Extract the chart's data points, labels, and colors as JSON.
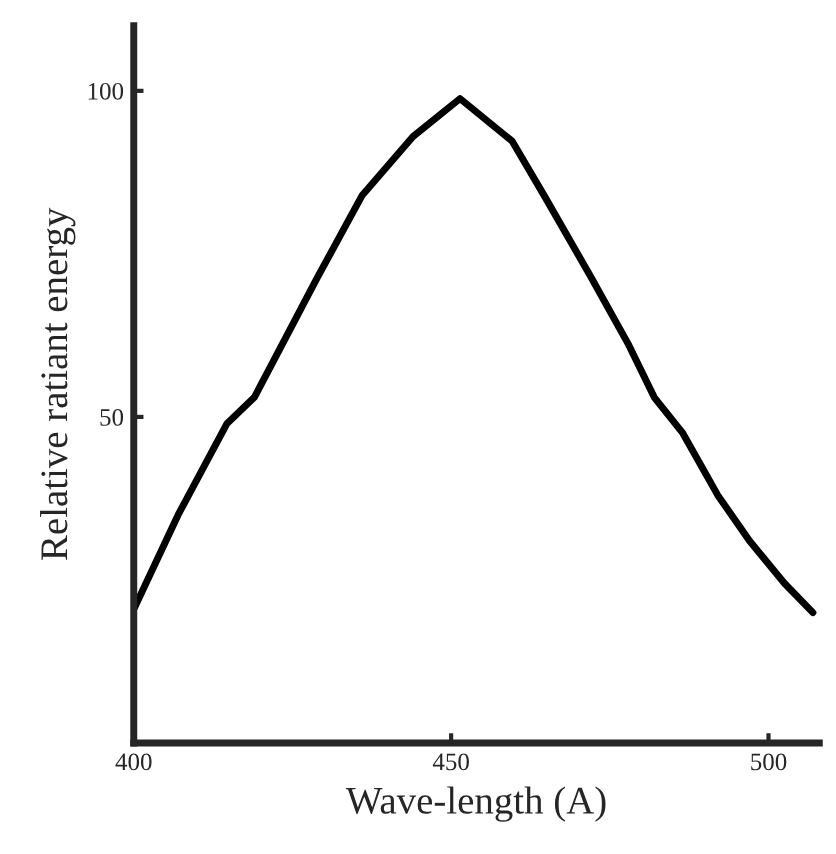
{
  "chart_data": {
    "type": "line",
    "xlabel": "Wave-length (A)",
    "ylabel": "Relative ratiant energy",
    "series": [
      {
        "color": "#000000",
        "x": [
          400,
          407,
          414.7,
          419,
          429,
          436,
          444,
          451.4,
          459.6,
          464.8,
          472,
          478,
          482,
          486.5,
          492,
          497,
          502.5,
          507
        ],
        "values": [
          20.5,
          35,
          49,
          53,
          71.5,
          84,
          93,
          98.8,
          92.3,
          83.7,
          71.5,
          61,
          53,
          47.5,
          38,
          31,
          24.5,
          20
        ]
      }
    ],
    "xlim": [
      400,
      508
    ],
    "ylim": [
      0,
      110
    ],
    "xticks": [
      400,
      450,
      500
    ],
    "yticks": [
      50,
      100
    ],
    "grid": false,
    "legend": false,
    "marker": "none",
    "line_style": "solid"
  }
}
